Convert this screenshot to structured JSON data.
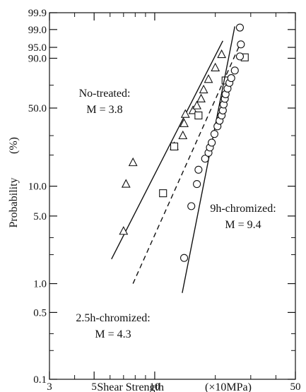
{
  "chart_data": {
    "type": "scatter",
    "x_scale": "log",
    "y_scale": "weibull-probability",
    "xlabel": "Shear Strength",
    "xunit": "(×10MPa)",
    "ylabel": "Probability",
    "yunit": "(%)",
    "xlim": [
      3,
      50
    ],
    "ylim": [
      0.1,
      99.9
    ],
    "x_ticks": [
      {
        "value": 3,
        "label": "3"
      },
      {
        "value": 5,
        "label": "5"
      },
      {
        "value": 10,
        "label": "10"
      },
      {
        "value": 50,
        "label": "50"
      }
    ],
    "y_ticks": [
      {
        "value": 99.9,
        "label": "99.9"
      },
      {
        "value": 99.0,
        "label": "99.0"
      },
      {
        "value": 95.0,
        "label": "95.0"
      },
      {
        "value": 90.0,
        "label": "90.0"
      },
      {
        "value": 50.0,
        "label": "50.0"
      },
      {
        "value": 10.0,
        "label": "10.0"
      },
      {
        "value": 5.0,
        "label": "5.0"
      },
      {
        "value": 1.0,
        "label": "1.0"
      },
      {
        "value": 0.5,
        "label": "0.5"
      },
      {
        "value": 0.1,
        "label": "0.1"
      }
    ],
    "series": [
      {
        "label_line1": "No-treated:",
        "label_line2": "M = 3.8",
        "marker": "triangle",
        "line_style": "solid",
        "points": [
          [
            7.0,
            3.5
          ],
          [
            7.2,
            10.5
          ],
          [
            7.8,
            17.0
          ],
          [
            12.5,
            24.0
          ],
          [
            13.8,
            30.0
          ],
          [
            14.0,
            38.0
          ],
          [
            14.2,
            45.0
          ],
          [
            15.5,
            48.0
          ],
          [
            16.2,
            52.0
          ],
          [
            17.0,
            58.0
          ],
          [
            17.5,
            66.0
          ],
          [
            18.5,
            75.0
          ],
          [
            20.0,
            84.0
          ],
          [
            21.5,
            92.0
          ]
        ],
        "fit_line": [
          [
            6.1,
            1.8
          ],
          [
            21.8,
            97.0
          ]
        ]
      },
      {
        "label_line1": "2.5h-chromized:",
        "label_line2": "M = 4.3",
        "marker": "square",
        "line_style": "dashed",
        "points": [
          [
            11.0,
            8.5
          ],
          [
            12.5,
            24.0
          ],
          [
            16.5,
            44.0
          ],
          [
            22.5,
            74.0
          ],
          [
            28.0,
            90.5
          ]
        ],
        "fit_line": [
          [
            7.8,
            1.0
          ],
          [
            27.0,
            97.0
          ]
        ]
      },
      {
        "label_line1": "9h-chromized:",
        "label_line2": "M = 9.4",
        "marker": "circle",
        "line_style": "solid",
        "points": [
          [
            14.0,
            1.85
          ],
          [
            15.2,
            6.3
          ],
          [
            16.2,
            10.5
          ],
          [
            16.5,
            14.5
          ],
          [
            17.8,
            18.5
          ],
          [
            18.5,
            21.0
          ],
          [
            18.8,
            23.5
          ],
          [
            19.2,
            26.0
          ],
          [
            19.8,
            31.0
          ],
          [
            20.5,
            36.0
          ],
          [
            21.0,
            40.0
          ],
          [
            21.5,
            44.0
          ],
          [
            21.8,
            48.0
          ],
          [
            22.0,
            53.0
          ],
          [
            22.3,
            58.0
          ],
          [
            22.5,
            62.0
          ],
          [
            23.0,
            67.0
          ],
          [
            23.5,
            72.0
          ],
          [
            24.0,
            76.0
          ],
          [
            25.0,
            82.0
          ],
          [
            26.5,
            91.0
          ],
          [
            26.8,
            96.0
          ],
          [
            26.5,
            99.2
          ]
        ],
        "fit_line": [
          [
            13.7,
            0.8
          ],
          [
            25.0,
            99.3
          ]
        ]
      }
    ]
  }
}
